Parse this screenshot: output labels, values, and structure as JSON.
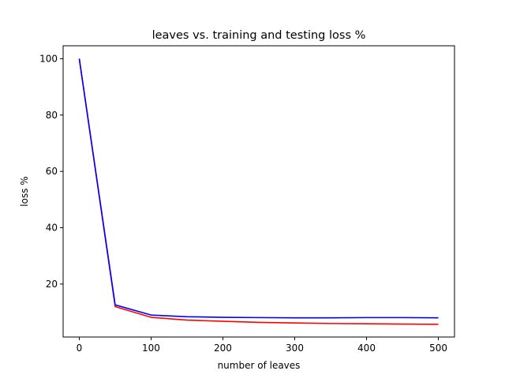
{
  "chart_data": {
    "type": "line",
    "title": "leaves vs. training and testing loss %",
    "xlabel": "number of leaves",
    "ylabel": "loss %",
    "xlim": [
      -22.5,
      522.5
    ],
    "ylim": [
      1.2,
      104.6
    ],
    "xticks": [
      0,
      100,
      200,
      300,
      400,
      500
    ],
    "yticks": [
      20,
      40,
      60,
      80,
      100
    ],
    "grid": false,
    "x": [
      0,
      50,
      100,
      150,
      200,
      250,
      300,
      350,
      400,
      450,
      500
    ],
    "series": [
      {
        "color": "#ff0000",
        "values": [
          100,
          12.0,
          8.2,
          7.2,
          6.8,
          6.4,
          6.2,
          6.0,
          5.9,
          5.8,
          5.7
        ]
      },
      {
        "color": "#0000ff",
        "values": [
          100,
          12.6,
          9.0,
          8.4,
          8.2,
          8.1,
          8.0,
          8.0,
          8.1,
          8.1,
          8.0
        ]
      }
    ]
  }
}
